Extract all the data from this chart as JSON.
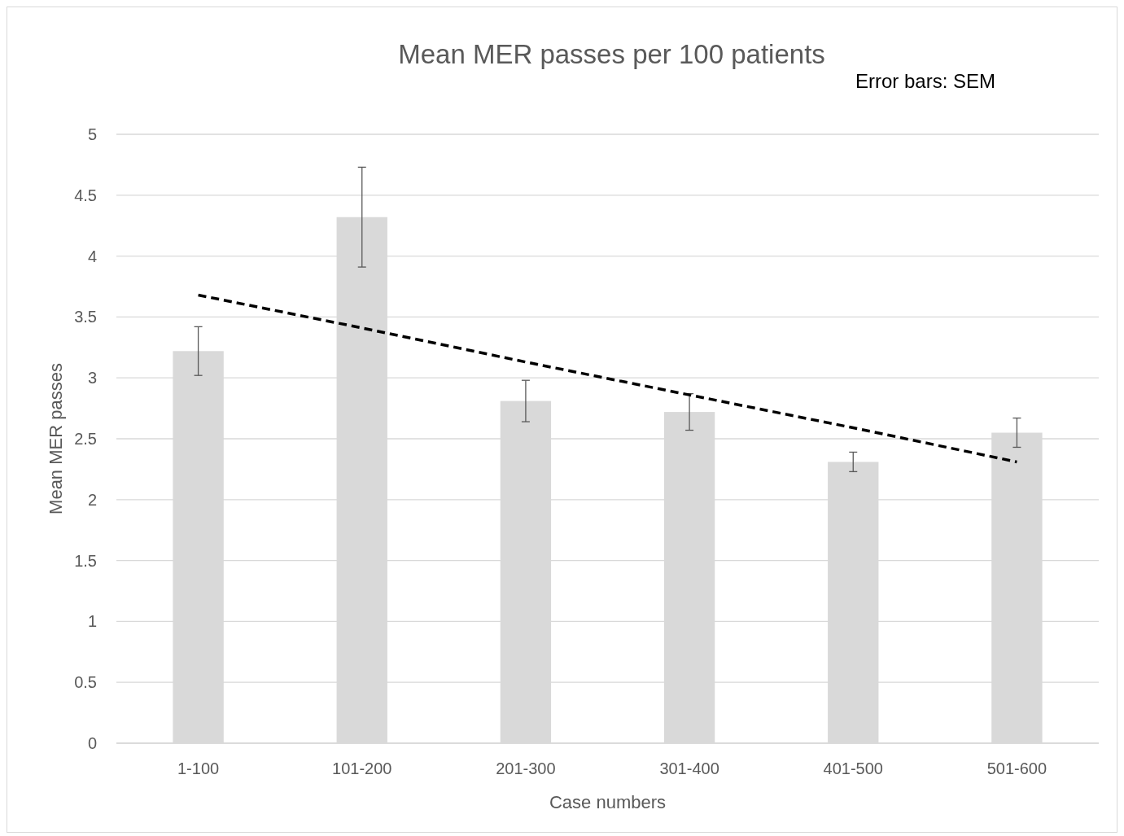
{
  "chart_data": {
    "type": "bar",
    "title": "Mean MER passes per 100 patients",
    "xlabel": "Case numbers",
    "ylabel": "Mean MER passes",
    "annotations": [
      "Error bars: SEM"
    ],
    "categories": [
      "1-100",
      "101-200",
      "201-300",
      "301-400",
      "401-500",
      "501-600"
    ],
    "series": [
      {
        "color": "#d9d9d9",
        "values": [
          3.22,
          4.32,
          2.81,
          2.72,
          2.31,
          2.55
        ],
        "errors": [
          0.2,
          0.41,
          0.17,
          0.15,
          0.08,
          0.12
        ]
      },
      {
        "type": "line",
        "color": "#000000",
        "line_style": "dashed",
        "values": [
          3.68,
          3.41,
          3.13,
          2.86,
          2.59,
          2.31
        ]
      }
    ],
    "ylim": [
      0,
      5
    ],
    "yticks": [
      0,
      0.5,
      1,
      1.5,
      2,
      2.5,
      3,
      3.5,
      4,
      4.5,
      5
    ],
    "grid": "y"
  }
}
